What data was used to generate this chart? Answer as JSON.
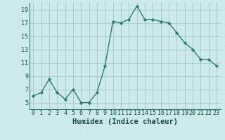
{
  "x": [
    0,
    1,
    2,
    3,
    4,
    5,
    6,
    7,
    8,
    9,
    10,
    11,
    12,
    13,
    14,
    15,
    16,
    17,
    18,
    19,
    20,
    21,
    22,
    23
  ],
  "y": [
    6.0,
    6.5,
    8.5,
    6.5,
    5.5,
    7.0,
    5.0,
    5.0,
    6.5,
    10.5,
    17.2,
    17.0,
    17.5,
    19.5,
    17.5,
    17.5,
    17.2,
    17.0,
    15.5,
    14.0,
    13.0,
    11.5,
    11.5,
    10.5
  ],
  "line_color": "#2e7d6e",
  "bg_color": "#cceaea",
  "grid_color": "#aacccc",
  "xlabel": "Humidex (Indice chaleur)",
  "xlim": [
    -0.5,
    23.5
  ],
  "ylim": [
    4,
    20
  ],
  "yticks": [
    5,
    7,
    9,
    11,
    13,
    15,
    17,
    19
  ],
  "xtick_labels": [
    "0",
    "1",
    "2",
    "3",
    "4",
    "5",
    "6",
    "7",
    "8",
    "9",
    "10",
    "11",
    "12",
    "13",
    "14",
    "15",
    "16",
    "17",
    "18",
    "19",
    "20",
    "21",
    "22",
    "23"
  ],
  "marker": "D",
  "marker_size": 2.2,
  "line_width": 1.0,
  "tick_fontsize": 6.0,
  "xlabel_fontsize": 7.5,
  "label_color": "#1a4a4a"
}
